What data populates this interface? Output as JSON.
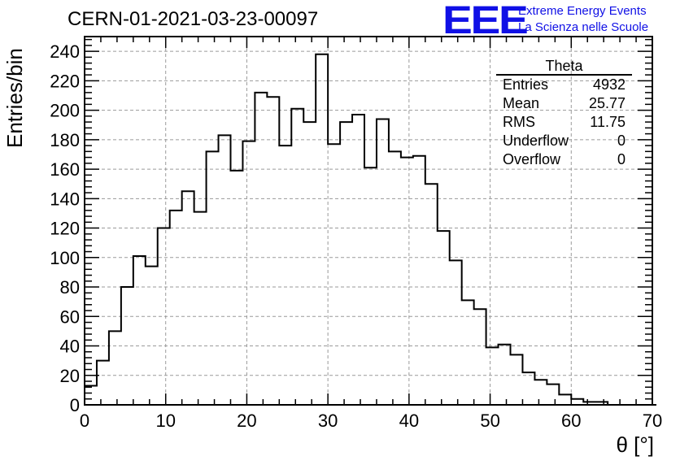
{
  "header": {
    "title": "CERN-01-2021-03-23-00097",
    "logo": "EEE",
    "logo_line1": "Extreme Energy Events",
    "logo_line2": "La Scienza nelle Scuole",
    "logo_color": "#1010e6"
  },
  "stats_box": {
    "title": "Theta",
    "rows": [
      {
        "label": "Entries",
        "value": "4932"
      },
      {
        "label": "Mean",
        "value": "25.77"
      },
      {
        "label": "RMS",
        "value": "11.75"
      },
      {
        "label": "Underflow",
        "value": "0"
      },
      {
        "label": "Overflow",
        "value": "0"
      }
    ]
  },
  "chart_data": {
    "type": "bar",
    "style": "step-histogram",
    "title": "CERN-01-2021-03-23-00097",
    "xlabel": "θ [°]",
    "ylabel": "Entries/bin",
    "xlim": [
      0,
      70
    ],
    "ylim": [
      0,
      250
    ],
    "xticks": [
      0,
      10,
      20,
      30,
      40,
      50,
      60,
      70
    ],
    "yticks": [
      0,
      20,
      40,
      60,
      80,
      100,
      120,
      140,
      160,
      180,
      200,
      220,
      240
    ],
    "grid": true,
    "bin_width": 1.5,
    "bin_edges_start": 0,
    "values": [
      13,
      30,
      50,
      80,
      101,
      94,
      120,
      132,
      145,
      131,
      172,
      183,
      159,
      179,
      212,
      209,
      176,
      201,
      192,
      238,
      177,
      192,
      197,
      161,
      194,
      172,
      168,
      169,
      150,
      118,
      98,
      71,
      65,
      39,
      41,
      34,
      22,
      17,
      14,
      7,
      4,
      2,
      2,
      0,
      0,
      0,
      0
    ]
  }
}
